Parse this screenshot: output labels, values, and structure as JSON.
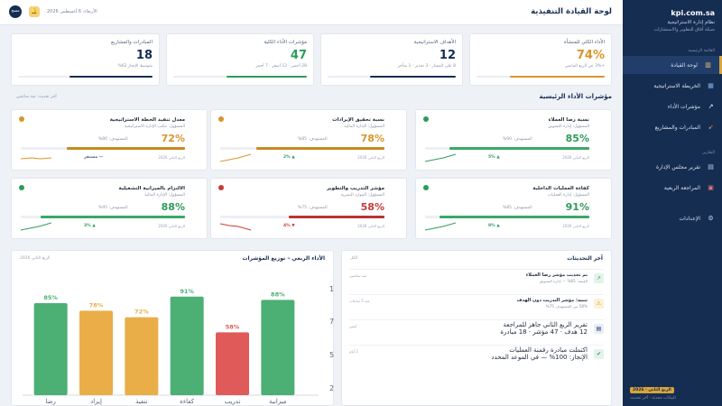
{
  "sidebar": {
    "domain": "kpi.com.sa",
    "system": "نظام إدارة الاستراتيجية",
    "network": "شبكة آفاق للتطوير والاستشارات",
    "section_main": "القائمة الرئيسية",
    "items": [
      {
        "label": "لوحة القيادة",
        "icon": "chart-icon",
        "active": true
      },
      {
        "label": "الخريطة الاستراتيجية",
        "icon": "map-icon"
      },
      {
        "label": "مؤشرات الأداء",
        "icon": "trend-icon"
      },
      {
        "label": "المبادرات والمشاريع",
        "icon": "rocket-icon"
      }
    ],
    "section_reports": "التقارير",
    "reports": [
      {
        "label": "تقرير مجلس الإدارة",
        "icon": "document-icon"
      },
      {
        "label": "المراجعة الربعية",
        "icon": "calendar-icon"
      }
    ],
    "settings": {
      "label": "الإعدادات",
      "icon": "gear-icon"
    },
    "quarter_badge": "الربع الثاني · 2026",
    "footer_note": "البيانات محدثة · آخر تحديث"
  },
  "header": {
    "title": "لوحة القيادة التنفيذية",
    "date": "الأربعاء، 6 أغسطس 2026",
    "avatar": "مسج"
  },
  "stats": [
    {
      "label": "الأداء الكلي للمنشأة",
      "value": "74%",
      "sub": "+3% عن الربع الماضي",
      "color": "#d9952b",
      "progress": 0.74
    },
    {
      "label": "الأهداف الاستراتيجية",
      "value": "12",
      "sub": "8 على المسار · 3 تحذير · 1 متأخر",
      "color": "#162d52",
      "progress": 0.67
    },
    {
      "label": "مؤشرات الأداء الكلية",
      "value": "47",
      "sub": "28 أخضر · 12 أصفر · 7 أحمر",
      "color": "#2e9b5a",
      "progress": 0.6
    },
    {
      "label": "المبادرات والمشاريع",
      "value": "18",
      "sub": "متوسط الإنجاز 62%",
      "color": "#162d52",
      "progress": 0.62
    }
  ],
  "kpi_section": {
    "title": "مؤشرات الأداء الرئيسية",
    "note": "آخر تحديث: منذ ساعتين"
  },
  "kpis": [
    {
      "name": "نسبة رضا العملاء",
      "owner": "المسؤول: إدارة التسويق",
      "value": "85%",
      "target": "المستهدف: 90%",
      "updated": "الربع الثاني 2026",
      "trend": "▲ 5%",
      "status": "green",
      "level": 0.85
    },
    {
      "name": "نسبة تحقيق الإيرادات",
      "owner": "المسؤول: الإدارة المالية",
      "value": "78%",
      "target": "المستهدف: 85%",
      "updated": "الربع الثاني 2026",
      "trend": "▲ 2%",
      "status": "orange",
      "level": 0.78
    },
    {
      "name": "معدل تنفيذ الخطة الاستراتيجية",
      "owner": "المسؤول: مكتب الإدارة الاستراتيجية",
      "value": "72%",
      "target": "المستهدف: 80%",
      "updated": "الربع الثاني 2026",
      "trend": "— مستقر",
      "status": "orange",
      "level": 0.72
    },
    {
      "name": "كفاءة العمليات الداخلية",
      "owner": "المسؤول: إدارة العمليات",
      "value": "91%",
      "target": "المستهدف: 85%",
      "updated": "الربع الثاني 2026",
      "trend": "▲ 8%",
      "status": "green",
      "level": 0.91
    },
    {
      "name": "مؤشر التدريب والتطوير",
      "owner": "المسؤول: الموارد البشرية",
      "value": "58%",
      "target": "المستهدف: 75%",
      "updated": "الربع الثاني 2026",
      "trend": "▼ 4%",
      "status": "red",
      "level": 0.58
    },
    {
      "name": "الالتزام بالميزانية التشغيلية",
      "owner": "المسؤول: الإدارة المالية",
      "value": "88%",
      "target": "المستهدف: 95%",
      "updated": "الربع الثاني 2026",
      "trend": "▲ 3%",
      "status": "green",
      "level": 0.88
    }
  ],
  "chart_card": {
    "title": "الأداء الربعي – توزيع المؤشرات",
    "period": "الربع الثاني 2026"
  },
  "chart_data": {
    "type": "bar",
    "categories": [
      "ميزانية",
      "تدريب",
      "كفاءة",
      "تنفيذ",
      "إيراد",
      "رضا"
    ],
    "values": [
      88,
      58,
      91,
      72,
      78,
      85
    ],
    "colors": [
      "#4caf74",
      "#e05a5a",
      "#4caf74",
      "#e9ae47",
      "#e9ae47",
      "#4caf74"
    ],
    "value_labels": [
      "88%",
      "58%",
      "91%",
      "72%",
      "78%",
      "85%"
    ],
    "y_ticks": [
      "1",
      "7",
      "5",
      "2"
    ],
    "ylim": [
      0,
      100
    ]
  },
  "updates": {
    "title": "آخر التحديثات",
    "view_all": "الكل",
    "items": [
      {
        "main": "تم تحديث مؤشر رضا العملاء",
        "sub": "القيمة: 85% — إدارة التسويق",
        "time": "منذ ساعتين",
        "icon": "trend-icon",
        "bg": "#e4f3ea",
        "fg": "#2e9b5a",
        "large": false
      },
      {
        "main": "تنبيه: مؤشر التدريب دون الهدف",
        "sub": "58% من المستهدف 75%",
        "time": "منذ 5 ساعات",
        "icon": "warning-icon",
        "bg": "#fdf1d6",
        "fg": "#d9952b",
        "large": false
      },
      {
        "main": "تقرير الربع الثاني جاهز للمراجعة",
        "sub": "12 هدف · 47 مؤشر · 18 مبادرة",
        "time": "أمس",
        "icon": "document-icon",
        "bg": "#e8edf5",
        "fg": "#162d52",
        "large": true
      },
      {
        "main": "اكتملت مبادرة رقمنة العمليات",
        "sub": "الإنجاز: 100% — في الموعد المحدد",
        "time": "2 أيام",
        "icon": "check-icon",
        "bg": "#e4f3ea",
        "fg": "#2e9b5a",
        "large": true
      }
    ]
  }
}
